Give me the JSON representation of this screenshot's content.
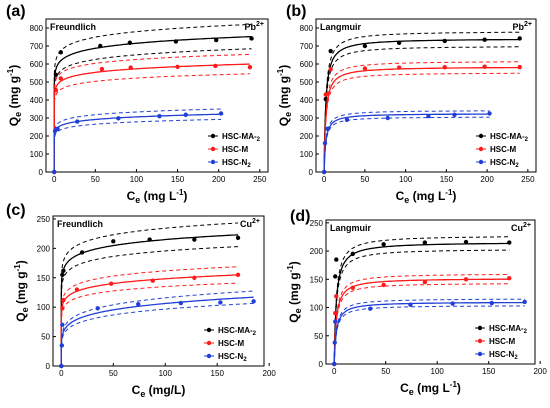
{
  "legend_names": [
    "HSC-MA-2",
    "HSC-M",
    "HSC-N2"
  ],
  "colors": {
    "HSC-MA-2": "#000000",
    "HSC-M": "#ff1a1a",
    "HSC-N2": "#1f3fd6"
  },
  "chart_data": [
    {
      "panel": "(a)",
      "type": "scatter",
      "model": "Freundlich",
      "ion": "Pb2+",
      "xlabel": "Ce (mg L-1)",
      "ylabel": "Qe (mg g-1)",
      "xlim": [
        -10,
        260
      ],
      "ylim": [
        0,
        850
      ],
      "xticks": [
        0,
        50,
        100,
        150,
        200,
        250
      ],
      "yticks": [
        0,
        100,
        200,
        300,
        400,
        500,
        600,
        700,
        800
      ],
      "legend": "bottom-right",
      "series": [
        {
          "name": "HSC-MA-2",
          "x": [
            0,
            2,
            8,
            56,
            92,
            148,
            197,
            240
          ],
          "y": [
            0,
            540,
            665,
            700,
            718,
            725,
            733,
            742
          ]
        },
        {
          "name": "HSC-M",
          "x": [
            0,
            2,
            8,
            58,
            93,
            150,
            196,
            238
          ],
          "y": [
            0,
            455,
            520,
            572,
            580,
            584,
            589,
            582
          ]
        },
        {
          "name": "HSC-N2",
          "x": [
            0,
            1,
            4,
            28,
            78,
            128,
            160,
            203
          ],
          "y": [
            0,
            228,
            240,
            280,
            298,
            310,
            318,
            325
          ]
        }
      ]
    },
    {
      "panel": "(b)",
      "type": "scatter",
      "model": "Langmuir",
      "ion": "Pb2+",
      "xlabel": "Ce (mg L-1)",
      "ylabel": "Qe (mg g-1)",
      "xlim": [
        -10,
        260
      ],
      "ylim": [
        0,
        850
      ],
      "xticks": [
        0,
        50,
        100,
        150,
        200,
        250
      ],
      "yticks": [
        0,
        100,
        200,
        300,
        400,
        500,
        600,
        700,
        800
      ],
      "legend": "bottom-right",
      "series": [
        {
          "name": "HSC-MA-2",
          "x": [
            0,
            2,
            8,
            50,
            92,
            148,
            197,
            240
          ],
          "y": [
            0,
            405,
            672,
            700,
            718,
            728,
            735,
            742
          ]
        },
        {
          "name": "HSC-M",
          "x": [
            0,
            2,
            8,
            50,
            92,
            148,
            197,
            240
          ],
          "y": [
            0,
            430,
            570,
            575,
            580,
            582,
            585,
            583
          ]
        },
        {
          "name": "HSC-N2",
          "x": [
            0,
            1,
            4,
            28,
            78,
            128,
            160,
            203
          ],
          "y": [
            0,
            160,
            240,
            290,
            300,
            310,
            318,
            325
          ]
        }
      ]
    },
    {
      "panel": "(c)",
      "type": "scatter",
      "model": "Freundlich",
      "ion": "Cu2+",
      "xlabel": "Ce (mg/L)",
      "ylabel": "Qe (mg g-1)",
      "xlim": [
        -8,
        195
      ],
      "ylim": [
        0,
        255
      ],
      "xticks": [
        0,
        50,
        100,
        150,
        200
      ],
      "yticks": [
        0,
        50,
        100,
        150,
        200,
        250
      ],
      "legend": "bottom-right",
      "series": [
        {
          "name": "HSC-MA-2",
          "x": [
            0,
            1,
            2,
            20,
            50,
            85,
            128,
            170
          ],
          "y": [
            0,
            155,
            162,
            193,
            212,
            215,
            215,
            218
          ]
        },
        {
          "name": "HSC-M",
          "x": [
            0,
            1,
            2,
            15,
            48,
            88,
            128,
            170
          ],
          "y": [
            0,
            98,
            112,
            130,
            140,
            145,
            150,
            155
          ]
        },
        {
          "name": "HSC-N2",
          "x": [
            0,
            0.5,
            1,
            35,
            74,
            115,
            153,
            185
          ],
          "y": [
            0,
            35,
            70,
            98,
            105,
            107,
            108,
            110
          ]
        }
      ]
    },
    {
      "panel": "(d)",
      "type": "scatter",
      "model": "Langmuir",
      "ion": "Cu2+",
      "xlabel": "Ce (mg L-1)",
      "ylabel": "Qe (mg g-1)",
      "xlim": [
        -8,
        195
      ],
      "ylim": [
        0,
        255
      ],
      "xticks": [
        0,
        50,
        100,
        150,
        200
      ],
      "yticks": [
        0,
        50,
        100,
        150,
        200,
        250
      ],
      "legend": "bottom-right",
      "series": [
        {
          "name": "HSC-MA-2",
          "x": [
            0,
            1,
            2,
            18,
            48,
            88,
            128,
            170
          ],
          "y": [
            0,
            155,
            185,
            195,
            212,
            215,
            216,
            215
          ]
        },
        {
          "name": "HSC-M",
          "x": [
            0,
            1,
            2,
            18,
            48,
            88,
            128,
            170
          ],
          "y": [
            0,
            90,
            120,
            135,
            140,
            145,
            150,
            152
          ]
        },
        {
          "name": "HSC-N2",
          "x": [
            0,
            0.5,
            1,
            35,
            74,
            115,
            153,
            185
          ],
          "y": [
            0,
            38,
            75,
            98,
            105,
            107,
            108,
            110
          ]
        }
      ]
    }
  ]
}
